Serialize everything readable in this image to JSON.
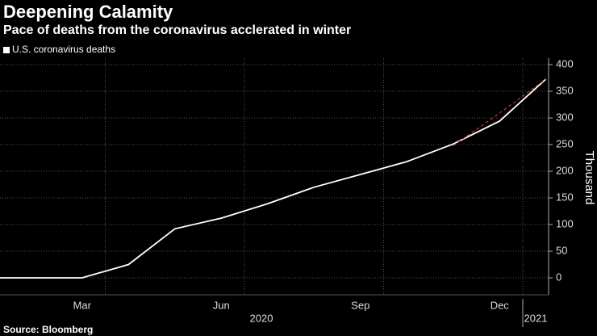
{
  "chart_data": {
    "type": "line",
    "title": "Deepening Calamity",
    "subtitle": "Pace of deaths from the coronavirus acclerated in winter",
    "ylabel": "Thousand",
    "source": "Source: Bloomberg",
    "x": [
      "2020-01",
      "2020-02",
      "2020-03",
      "2020-04",
      "2020-05",
      "2020-06",
      "2020-07",
      "2020-08",
      "2020-09",
      "2020-10",
      "2020-11",
      "2020-12",
      "2021-01"
    ],
    "series": [
      {
        "name": "U.S. coronavirus deaths",
        "color": "#ffffff",
        "values": [
          0,
          0,
          0,
          25,
          92,
          112,
          139,
          170,
          194,
          218,
          251,
          294,
          373
        ]
      },
      {
        "color": "#c0392b",
        "dashed": true,
        "values": [
          null,
          null,
          null,
          null,
          null,
          null,
          null,
          null,
          null,
          null,
          248,
          309,
          373
        ]
      }
    ],
    "xlim": [
      "2020-01",
      "2021-01"
    ],
    "xticks": [
      {
        "value": "2020-03",
        "label": "Mar"
      },
      {
        "value": "2020-06",
        "label": "Jun"
      },
      {
        "value": "2020-09",
        "label": "Sep"
      },
      {
        "value": "2020-12",
        "label": "Dec"
      }
    ],
    "years": [
      "2020",
      "2021"
    ],
    "ylim": [
      -30,
      400
    ],
    "yticks": [
      0,
      50,
      100,
      150,
      200,
      250,
      300,
      350,
      400
    ],
    "grid": true,
    "legend": "top-left"
  }
}
